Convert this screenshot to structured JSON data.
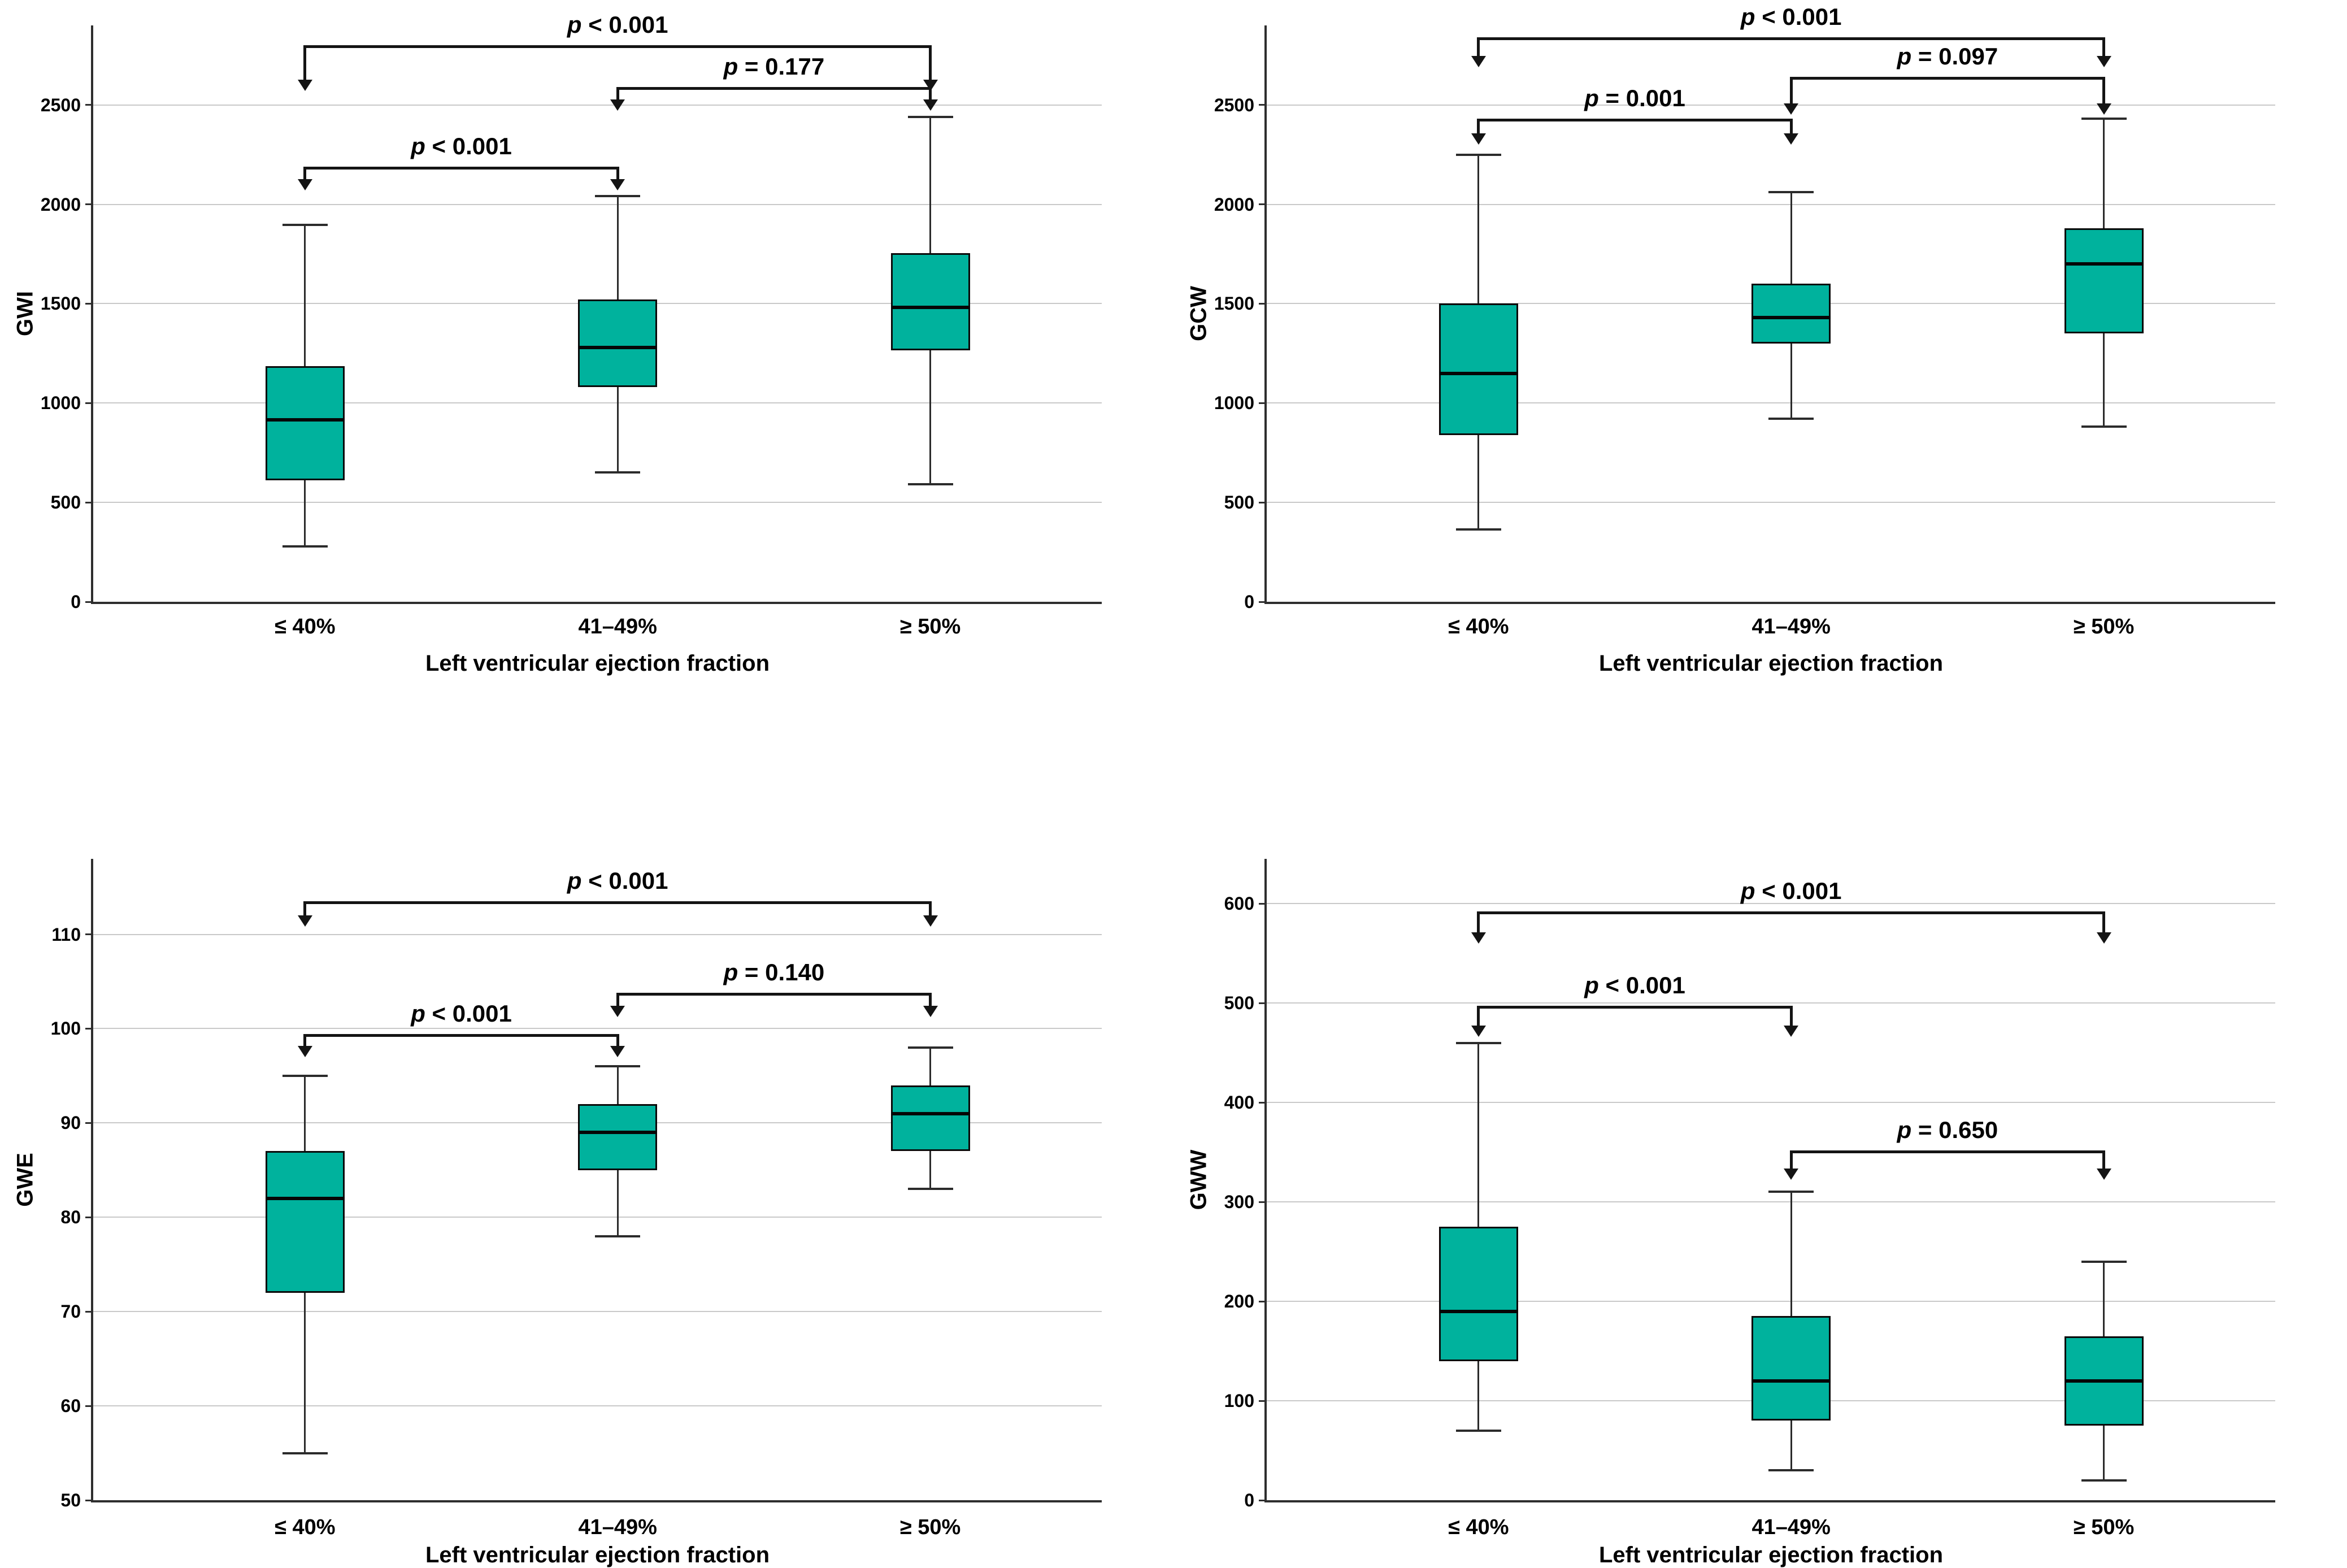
{
  "figure": {
    "x_axis_label": "Left ventricular ejection fraction",
    "categories": [
      "≤ 40%",
      "41–49%",
      "≥ 50%"
    ],
    "panel_order": [
      "GWI",
      "GCW",
      "GWE",
      "GWW"
    ],
    "colors": {
      "box_fill": "#00B29D",
      "box_border": "#0a0a0a",
      "median": "#060606",
      "whisker": "#2b2b2b",
      "gridline": "#c9c9c9",
      "axis": "#2e2e2e",
      "bracket": "#141414",
      "background": "#ffffff",
      "text": "#000000"
    }
  },
  "chart_data": [
    {
      "type": "box",
      "ylabel": "GWI",
      "xlabel": "Left ventricular ejection fraction",
      "categories": [
        "≤ 40%",
        "41–49%",
        "≥ 50%"
      ],
      "ylim": [
        0,
        2900
      ],
      "yticks": [
        0,
        500,
        1000,
        1500,
        2000,
        2500
      ],
      "grid": true,
      "boxes": [
        {
          "category": "≤ 40%",
          "whisker_low": 280,
          "q1": 610,
          "median": 915,
          "q3": 1185,
          "whisker_high": 1895
        },
        {
          "category": "41–49%",
          "whisker_low": 650,
          "q1": 1080,
          "median": 1280,
          "q3": 1520,
          "whisker_high": 2040
        },
        {
          "category": "≥ 50%",
          "whisker_low": 590,
          "q1": 1265,
          "median": 1480,
          "q3": 1755,
          "whisker_high": 2440
        }
      ],
      "comparisons": [
        {
          "from": 0,
          "to": 2,
          "label": "p < 0.001",
          "line_y": 2800,
          "tip_y": 2570
        },
        {
          "from": 1,
          "to": 2,
          "label": "p = 0.177",
          "line_y": 2590,
          "tip_y": 2470
        },
        {
          "from": 0,
          "to": 1,
          "label": "p < 0.001",
          "line_y": 2190,
          "tip_y": 2070
        }
      ]
    },
    {
      "type": "box",
      "ylabel": "GCW",
      "xlabel": "Left ventricular ejection fraction",
      "categories": [
        "≤ 40%",
        "41–49%",
        "≥ 50%"
      ],
      "ylim": [
        0,
        2900
      ],
      "yticks": [
        0,
        500,
        1000,
        1500,
        2000,
        2500
      ],
      "grid": true,
      "boxes": [
        {
          "category": "≤ 40%",
          "whisker_low": 365,
          "q1": 840,
          "median": 1150,
          "q3": 1500,
          "whisker_high": 2250
        },
        {
          "category": "41–49%",
          "whisker_low": 920,
          "q1": 1300,
          "median": 1430,
          "q3": 1600,
          "whisker_high": 2060
        },
        {
          "category": "≥ 50%",
          "whisker_low": 880,
          "q1": 1350,
          "median": 1700,
          "q3": 1880,
          "whisker_high": 2430
        }
      ],
      "comparisons": [
        {
          "from": 0,
          "to": 2,
          "label": "p < 0.001",
          "line_y": 2840,
          "tip_y": 2690
        },
        {
          "from": 1,
          "to": 2,
          "label": "p = 0.097",
          "line_y": 2640,
          "tip_y": 2450
        },
        {
          "from": 0,
          "to": 1,
          "label": "p = 0.001",
          "line_y": 2430,
          "tip_y": 2300
        }
      ]
    },
    {
      "type": "box",
      "ylabel": "GWE",
      "xlabel": "Left ventricular ejection fraction",
      "categories": [
        "≤ 40%",
        "41–49%",
        "≥ 50%"
      ],
      "ylim": [
        50,
        118
      ],
      "yticks": [
        50,
        60,
        70,
        80,
        90,
        100,
        110
      ],
      "grid": true,
      "boxes": [
        {
          "category": "≤ 40%",
          "whisker_low": 55,
          "q1": 72,
          "median": 82,
          "q3": 87,
          "whisker_high": 95
        },
        {
          "category": "41–49%",
          "whisker_low": 78,
          "q1": 85,
          "median": 89,
          "q3": 92,
          "whisker_high": 96
        },
        {
          "category": "≥ 50%",
          "whisker_low": 83,
          "q1": 87,
          "median": 91,
          "q3": 94,
          "whisker_high": 98
        }
      ],
      "comparisons": [
        {
          "from": 0,
          "to": 2,
          "label": "p < 0.001",
          "line_y": 113.5,
          "tip_y": 110.8
        },
        {
          "from": 1,
          "to": 2,
          "label": "p = 0.140",
          "line_y": 103.8,
          "tip_y": 101.2
        },
        {
          "from": 0,
          "to": 1,
          "label": "p < 0.001",
          "line_y": 99.4,
          "tip_y": 97.0
        }
      ]
    },
    {
      "type": "box",
      "ylabel": "GWW",
      "xlabel": "Left ventricular ejection fraction",
      "categories": [
        "≤ 40%",
        "41–49%",
        "≥ 50%"
      ],
      "ylim": [
        0,
        645
      ],
      "yticks": [
        0,
        100,
        200,
        300,
        400,
        500,
        600
      ],
      "grid": true,
      "boxes": [
        {
          "category": "≤ 40%",
          "whisker_low": 70,
          "q1": 140,
          "median": 190,
          "q3": 275,
          "whisker_high": 460
        },
        {
          "category": "41–49%",
          "whisker_low": 30,
          "q1": 80,
          "median": 120,
          "q3": 185,
          "whisker_high": 310
        },
        {
          "category": "≥ 50%",
          "whisker_low": 20,
          "q1": 75,
          "median": 120,
          "q3": 165,
          "whisker_high": 240
        }
      ],
      "comparisons": [
        {
          "from": 0,
          "to": 2,
          "label": "p < 0.001",
          "line_y": 592,
          "tip_y": 560
        },
        {
          "from": 0,
          "to": 1,
          "label": "p < 0.001",
          "line_y": 497,
          "tip_y": 466
        },
        {
          "from": 1,
          "to": 2,
          "label": "p = 0.650",
          "line_y": 352,
          "tip_y": 322
        }
      ]
    }
  ]
}
